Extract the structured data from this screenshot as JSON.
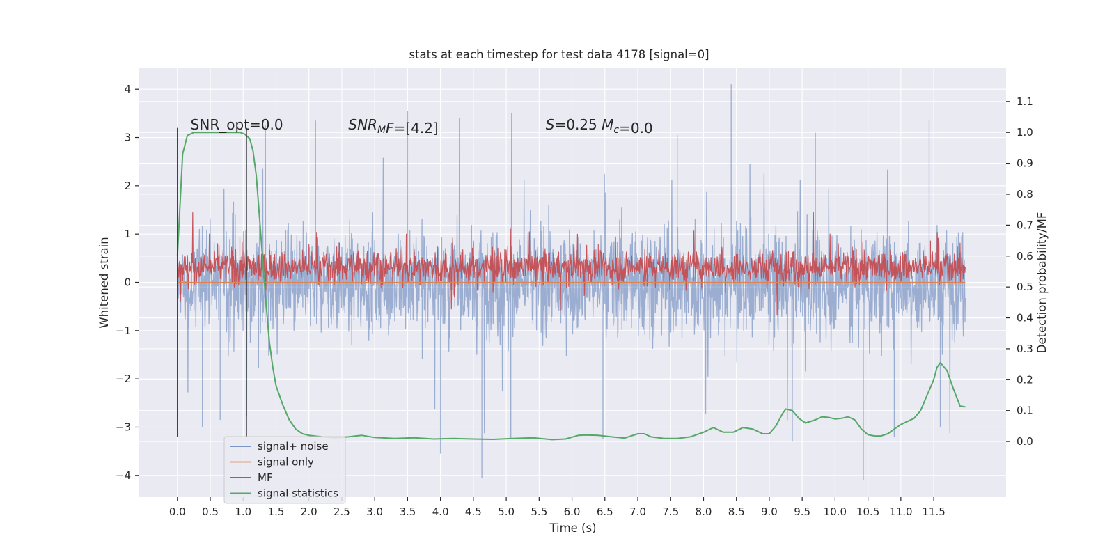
{
  "chart_data": {
    "type": "line",
    "title": "stats at each timestep for test data 4178 [signal=0]",
    "xlabel": "Time (s)",
    "ylabel": "Whitened strain",
    "ylabel_right": "Detection probability/MF",
    "xlim": [
      -0.58,
      12.6
    ],
    "ylim": [
      -4.45,
      4.45
    ],
    "ylim_right": [
      -0.18,
      1.21
    ],
    "x_ticks": [
      0.0,
      0.5,
      1.0,
      1.5,
      2.0,
      2.5,
      3.0,
      3.5,
      4.0,
      4.5,
      5.0,
      5.5,
      6.0,
      6.5,
      7.0,
      7.5,
      8.0,
      8.5,
      9.0,
      9.5,
      10.0,
      10.5,
      11.0,
      11.5
    ],
    "x_tick_labels": [
      "0.0",
      "0.5",
      "1.0",
      "1.5",
      "2.0",
      "2.5",
      "3.0",
      "3.5",
      "4.0",
      "4.5",
      "5.0",
      "5.5",
      "6.0",
      "6.5",
      "7.0",
      "7.5",
      "8.0",
      "8.5",
      "9.0",
      "9.5",
      "10.0",
      "10.5",
      "11.0",
      "11.5"
    ],
    "y_ticks": [
      -4,
      -3,
      -2,
      -1,
      0,
      1,
      2,
      3,
      4
    ],
    "y_tick_labels": [
      "−4",
      "−3",
      "−2",
      "−1",
      "0",
      "1",
      "2",
      "3",
      "4"
    ],
    "y_right_ticks": [
      0.0,
      0.1,
      0.2,
      0.3,
      0.4,
      0.5,
      0.6,
      0.7,
      0.8,
      0.9,
      1.0,
      1.1
    ],
    "y_right_tick_labels": [
      "0.0",
      "0.1",
      "0.2",
      "0.3",
      "0.4",
      "0.5",
      "0.6",
      "0.7",
      "0.8",
      "0.9",
      "1.0",
      "1.1"
    ],
    "grid": true,
    "legend_position": "lower-left",
    "colors": {
      "background": "#eaeaf2",
      "grid": "#ffffff",
      "signal_noise": "#4c72b0",
      "signal_only": "#dd8452",
      "mf": "#c44e52",
      "stats": "#55a868"
    },
    "annotations": [
      {
        "x": 0.2,
        "y": 3.25,
        "parts": [
          {
            "t": "SNR_opt=0.0",
            "it": false
          }
        ]
      },
      {
        "x": 2.6,
        "y": 3.25,
        "parts": [
          {
            "t": "SNR",
            "it": true
          },
          {
            "t": "M",
            "it": true,
            "sub": true
          },
          {
            "t": "F",
            "it": true
          },
          {
            "t": "=[4.2]",
            "it": false
          }
        ]
      },
      {
        "x": 5.6,
        "y": 3.25,
        "parts": [
          {
            "t": "S",
            "it": true
          },
          {
            "t": "=0.25   ",
            "it": false
          },
          {
            "t": "M",
            "it": true
          },
          {
            "t": "c",
            "it": true,
            "sub": true
          },
          {
            "t": "=0.0",
            "it": false
          }
        ]
      }
    ],
    "vlines": [
      {
        "x": 0.0,
        "ymin": -3.2,
        "ymax": 3.2
      },
      {
        "x": 1.05,
        "ymin": -3.2,
        "ymax": 3.2
      }
    ],
    "series": [
      {
        "name": "signal+ noise",
        "axis": "left",
        "style": "dense-noise",
        "x_range": [
          0.0,
          11.98
        ],
        "typical_range": [
          -1.3,
          1.3
        ],
        "peaks": [
          {
            "x": 8.42,
            "y": 4.1
          },
          {
            "x": 4.0,
            "y": -3.55
          },
          {
            "x": 4.63,
            "y": -4.05
          },
          {
            "x": 10.43,
            "y": -4.1
          },
          {
            "x": 3.5,
            "y": 3.55
          },
          {
            "x": 2.1,
            "y": 3.35
          },
          {
            "x": 9.35,
            "y": -3.3
          },
          {
            "x": 5.07,
            "y": -3.25
          },
          {
            "x": 0.38,
            "y": -3.0
          },
          {
            "x": 6.47,
            "y": -3.25
          },
          {
            "x": 9.7,
            "y": 3.1
          },
          {
            "x": 11.43,
            "y": 3.35
          },
          {
            "x": 7.6,
            "y": 3.05
          },
          {
            "x": 0.65,
            "y": -2.85
          },
          {
            "x": 11.6,
            "y": -3.0
          },
          {
            "x": 10.9,
            "y": -3.2
          }
        ]
      },
      {
        "name": "signal only",
        "axis": "left",
        "style": "line",
        "x": [
          0.0,
          11.98
        ],
        "y": [
          0.0,
          0.0
        ]
      },
      {
        "name": "MF",
        "axis": "right",
        "style": "dense-noise",
        "x_range": [
          0.0,
          11.98
        ],
        "typical_range": [
          0.5,
          0.63
        ],
        "peaks": [
          {
            "x": 0.95,
            "y": 0.66
          },
          {
            "x": 8.3,
            "y": 0.66
          },
          {
            "x": 4.5,
            "y": 0.65
          },
          {
            "x": 11.45,
            "y": 0.65
          },
          {
            "x": 2.0,
            "y": 0.64
          },
          {
            "x": 6.4,
            "y": 0.64
          }
        ]
      },
      {
        "name": "signal statistics",
        "axis": "right",
        "style": "line",
        "x": [
          0.0,
          0.08,
          0.15,
          0.25,
          0.4,
          0.55,
          0.7,
          0.85,
          0.95,
          1.02,
          1.1,
          1.15,
          1.2,
          1.25,
          1.3,
          1.35,
          1.4,
          1.45,
          1.5,
          1.6,
          1.7,
          1.8,
          1.9,
          2.0,
          2.2,
          2.4,
          2.6,
          2.8,
          3.0,
          3.3,
          3.6,
          3.9,
          4.2,
          4.5,
          4.8,
          5.1,
          5.4,
          5.7,
          5.9,
          6.1,
          6.2,
          6.4,
          6.6,
          6.8,
          7.0,
          7.1,
          7.2,
          7.4,
          7.6,
          7.8,
          8.0,
          8.15,
          8.3,
          8.45,
          8.6,
          8.75,
          8.9,
          9.0,
          9.1,
          9.2,
          9.25,
          9.35,
          9.45,
          9.55,
          9.7,
          9.8,
          9.9,
          10.0,
          10.1,
          10.2,
          10.3,
          10.4,
          10.5,
          10.6,
          10.7,
          10.8,
          10.9,
          11.0,
          11.2,
          11.3,
          11.4,
          11.5,
          11.55,
          11.6,
          11.7,
          11.8,
          11.9,
          11.98
        ],
        "y": [
          0.6,
          0.93,
          0.99,
          1.0,
          1.0,
          1.0,
          1.0,
          1.0,
          1.0,
          0.995,
          0.98,
          0.94,
          0.86,
          0.72,
          0.58,
          0.44,
          0.32,
          0.24,
          0.18,
          0.12,
          0.07,
          0.04,
          0.025,
          0.02,
          0.015,
          0.012,
          0.015,
          0.02,
          0.013,
          0.01,
          0.012,
          0.008,
          0.01,
          0.008,
          0.007,
          0.01,
          0.012,
          0.006,
          0.008,
          0.02,
          0.021,
          0.02,
          0.015,
          0.011,
          0.025,
          0.025,
          0.015,
          0.01,
          0.01,
          0.015,
          0.03,
          0.045,
          0.03,
          0.03,
          0.045,
          0.04,
          0.025,
          0.025,
          0.05,
          0.09,
          0.105,
          0.1,
          0.075,
          0.06,
          0.07,
          0.08,
          0.078,
          0.073,
          0.075,
          0.08,
          0.07,
          0.04,
          0.022,
          0.018,
          0.018,
          0.025,
          0.04,
          0.055,
          0.075,
          0.1,
          0.15,
          0.2,
          0.24,
          0.255,
          0.23,
          0.17,
          0.115,
          0.112
        ]
      }
    ]
  }
}
